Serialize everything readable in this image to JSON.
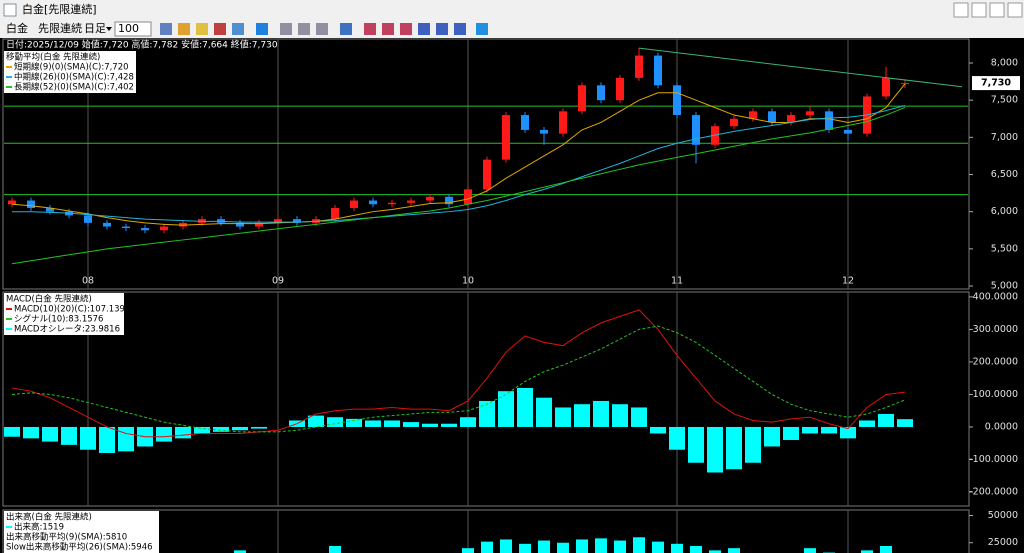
{
  "window": {
    "title": "白金[先限連続]"
  },
  "toolbar": {
    "symbol": "白金",
    "contract": "先限連続",
    "period": "日足",
    "count": "100"
  },
  "info_line": "日付:2025/12/09 始値:7,720 高値:7,782 安値:7,664 終値:7,730",
  "chart_data": [
    {
      "type": "candlestick",
      "title": "移動平均(白金 先限連続)",
      "categories": [
        null,
        null,
        null,
        null,
        "08",
        null,
        null,
        null,
        null,
        null,
        null,
        null,
        null,
        null,
        "09",
        null,
        null,
        null,
        null,
        null,
        null,
        null,
        null,
        null,
        "10",
        null,
        null,
        null,
        null,
        null,
        null,
        null,
        null,
        null,
        null,
        "11",
        null,
        null,
        null,
        null,
        null,
        null,
        null,
        null,
        "12",
        null,
        null,
        null
      ],
      "open": [
        6100,
        6150,
        6050,
        6000,
        5950,
        5850,
        5800,
        5780,
        5750,
        5800,
        5850,
        5900,
        5850,
        5800,
        5850,
        5900,
        5850,
        5900,
        6050,
        6150,
        6100,
        6120,
        6150,
        6200,
        6100,
        6300,
        6700,
        7300,
        7100,
        7050,
        7350,
        7700,
        7500,
        7800,
        8100,
        7700,
        7300,
        6900,
        7150,
        7250,
        7350,
        7200,
        7300,
        7350,
        7100,
        7050,
        7550,
        7720
      ],
      "high": [
        6190,
        6190,
        6090,
        6040,
        5990,
        5890,
        5840,
        5820,
        5840,
        5890,
        5940,
        5940,
        5890,
        5890,
        5940,
        5940,
        5940,
        6090,
        6190,
        6190,
        6160,
        6190,
        6240,
        6240,
        6340,
        6740,
        7340,
        7340,
        7140,
        7390,
        7740,
        7740,
        7840,
        8200,
        8140,
        7740,
        7340,
        7190,
        7290,
        7390,
        7390,
        7340,
        7420,
        7390,
        7140,
        7590,
        7950,
        7782
      ],
      "low": [
        6060,
        6010,
        5960,
        5910,
        5810,
        5760,
        5740,
        5710,
        5710,
        5760,
        5810,
        5810,
        5760,
        5760,
        5810,
        5810,
        5810,
        5860,
        6010,
        6060,
        6060,
        6080,
        6110,
        6060,
        6060,
        6260,
        6660,
        7060,
        6900,
        7010,
        7310,
        7460,
        7460,
        7760,
        7660,
        7260,
        6650,
        6860,
        7110,
        7210,
        7160,
        7160,
        7260,
        7060,
        6960,
        7010,
        7510,
        7664
      ],
      "close": [
        6150,
        6050,
        6000,
        5950,
        5850,
        5800,
        5780,
        5750,
        5800,
        5850,
        5900,
        5850,
        5800,
        5850,
        5900,
        5850,
        5900,
        6050,
        6150,
        6100,
        6120,
        6150,
        6200,
        6100,
        6300,
        6700,
        7300,
        7100,
        7050,
        7350,
        7700,
        7500,
        7800,
        8100,
        7700,
        7300,
        6900,
        7150,
        7250,
        7350,
        7200,
        7300,
        7350,
        7100,
        7050,
        7550,
        7800,
        7730
      ],
      "up_color": "#ff1a1a",
      "down_color": "#1e90ff",
      "series": [
        {
          "name": "短期線(9)(0)(SMA)(C):7,720",
          "color": "#e0a800",
          "values": [
            6100,
            6080,
            6050,
            6010,
            5970,
            5920,
            5880,
            5850,
            5830,
            5820,
            5830,
            5840,
            5840,
            5840,
            5850,
            5860,
            5870,
            5900,
            5950,
            6000,
            6030,
            6070,
            6110,
            6120,
            6170,
            6280,
            6450,
            6600,
            6750,
            6900,
            7100,
            7200,
            7350,
            7500,
            7600,
            7600,
            7500,
            7400,
            7300,
            7250,
            7200,
            7200,
            7250,
            7250,
            7200,
            7250,
            7400,
            7720
          ]
        },
        {
          "name": "中期線(26)(0)(SMA)(C):7,428",
          "color": "#20b4d8",
          "values": [
            6000,
            6000,
            5990,
            5980,
            5960,
            5940,
            5920,
            5900,
            5890,
            5880,
            5870,
            5870,
            5860,
            5860,
            5860,
            5860,
            5870,
            5880,
            5900,
            5920,
            5940,
            5960,
            5980,
            6000,
            6030,
            6080,
            6150,
            6230,
            6300,
            6380,
            6470,
            6560,
            6650,
            6750,
            6850,
            6920,
            6980,
            7030,
            7080,
            7120,
            7160,
            7200,
            7240,
            7260,
            7270,
            7300,
            7360,
            7428
          ]
        },
        {
          "name": "長期線(52)(0)(SMA)(C):7,402",
          "color": "#22c322",
          "values": [
            5300,
            5340,
            5380,
            5420,
            5460,
            5500,
            5530,
            5560,
            5590,
            5620,
            5650,
            5680,
            5710,
            5740,
            5770,
            5800,
            5830,
            5860,
            5890,
            5920,
            5950,
            5980,
            6010,
            6050,
            6100,
            6150,
            6210,
            6270,
            6330,
            6390,
            6450,
            6510,
            6570,
            6630,
            6680,
            6730,
            6780,
            6830,
            6880,
            6930,
            6980,
            7020,
            7060,
            7110,
            7160,
            7210,
            7300,
            7402
          ]
        }
      ],
      "hlines": [
        7420,
        6920,
        6230
      ],
      "hline_color": "#22c322",
      "trendline": {
        "color": "#3cb371",
        "x": [
          33,
          50
        ],
        "values": [
          8200,
          7680
        ]
      },
      "last_price": {
        "value": 7730,
        "label": "7,730"
      },
      "ylim": [
        4960,
        8323
      ],
      "yticks": [
        {
          "value": 5000,
          "label": "5,000"
        },
        {
          "value": 5500,
          "label": "5,500"
        },
        {
          "value": 6000,
          "label": "6,000"
        },
        {
          "value": 6500,
          "label": "6,500"
        },
        {
          "value": 7000,
          "label": "7,000"
        },
        {
          "value": 7500,
          "label": "7,500"
        },
        {
          "value": 8000,
          "label": "8,000"
        }
      ]
    },
    {
      "type": "macd",
      "title": "MACD(白金 先限連続)",
      "series": [
        {
          "name": "MACD(10)(20)(C):107.1392",
          "color": "#e01010",
          "style": "solid",
          "values": [
            120,
            110,
            90,
            60,
            30,
            0,
            -20,
            -30,
            -30,
            -25,
            -20,
            -20,
            -20,
            -15,
            -10,
            10,
            40,
            50,
            55,
            55,
            60,
            55,
            55,
            50,
            80,
            150,
            230,
            280,
            260,
            250,
            290,
            320,
            340,
            360,
            300,
            220,
            150,
            80,
            40,
            20,
            15,
            25,
            30,
            10,
            -5,
            60,
            100,
            107.1392
          ]
        },
        {
          "name": "シグナル(10):83.1576",
          "color": "#22c322",
          "style": "dashed",
          "values": [
            100,
            105,
            100,
            90,
            75,
            60,
            45,
            30,
            15,
            5,
            -5,
            -10,
            -15,
            -15,
            -15,
            -10,
            0,
            10,
            20,
            30,
            35,
            40,
            45,
            45,
            50,
            70,
            100,
            140,
            170,
            190,
            215,
            240,
            270,
            300,
            310,
            290,
            260,
            220,
            180,
            140,
            100,
            70,
            50,
            40,
            30,
            40,
            60,
            83.1576
          ]
        },
        {
          "name": "MACDオシレータ:23.9816",
          "color": "#00ffff",
          "style": "bar",
          "values": [
            -30,
            -35,
            -45,
            -55,
            -70,
            -80,
            -75,
            -60,
            -45,
            -35,
            -20,
            -15,
            -10,
            -5,
            0,
            20,
            35,
            30,
            25,
            20,
            20,
            15,
            10,
            10,
            30,
            80,
            110,
            120,
            90,
            60,
            70,
            80,
            70,
            60,
            -20,
            -70,
            -110,
            -140,
            -130,
            -110,
            -60,
            -40,
            -20,
            -20,
            -35,
            20,
            40,
            23.9816
          ]
        }
      ],
      "ylim": [
        -243,
        415
      ],
      "yticks": [
        {
          "value": -200,
          "label": "-200.0000"
        },
        {
          "value": -100,
          "label": "-100.0000"
        },
        {
          "value": 0,
          "label": "0.0000"
        },
        {
          "value": 100,
          "label": "100.0000"
        },
        {
          "value": 200,
          "label": "200.0000"
        },
        {
          "value": 300,
          "label": "300.0000"
        },
        {
          "value": 400,
          "label": "400.0000"
        }
      ]
    },
    {
      "type": "volume",
      "title": "出来高(白金 先限連続)",
      "series": [
        {
          "name": "出来高:1519",
          "color": "#00ffff",
          "values": [
            12000,
            9000,
            8000,
            20000,
            7000,
            9000,
            8000,
            6000,
            10000,
            7000,
            9000,
            8000,
            18000,
            7000,
            9000,
            8000,
            10000,
            22000,
            15000,
            9000,
            8000,
            12000,
            9000,
            8000,
            20000,
            26000,
            28000,
            24000,
            27000,
            25000,
            28000,
            29000,
            27000,
            30000,
            26000,
            24000,
            22000,
            18000,
            20000,
            15000,
            12000,
            14000,
            20000,
            16000,
            12000,
            18000,
            22000,
            1519
          ]
        }
      ],
      "legend_notes": [
        "出来高移動平均(9)(SMA):5810",
        "Slow出来高移動平均(26)(SMA):5946"
      ],
      "ylim": [
        0,
        55000
      ],
      "yticks": [
        25000,
        50000
      ]
    }
  ]
}
